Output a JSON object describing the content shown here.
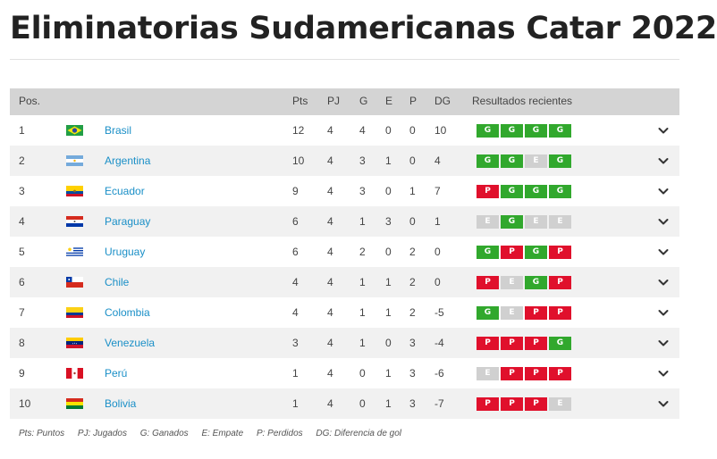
{
  "title": "Eliminatorias Sudamericanas Catar 2022",
  "header": {
    "pos": "Pos.",
    "pts": "Pts",
    "pj": "PJ",
    "g": "G",
    "e": "E",
    "p": "P",
    "dg": "DG",
    "results": "Resultados recientes"
  },
  "rows": [
    {
      "pos": "1",
      "team": "Brasil",
      "flag": "brazil",
      "pts": "12",
      "pj": "4",
      "g": "4",
      "e": "0",
      "p": "0",
      "dg": "10",
      "results": [
        "G",
        "G",
        "G",
        "G"
      ]
    },
    {
      "pos": "2",
      "team": "Argentina",
      "flag": "argentina",
      "pts": "10",
      "pj": "4",
      "g": "3",
      "e": "1",
      "p": "0",
      "dg": "4",
      "results": [
        "G",
        "G",
        "E",
        "G"
      ]
    },
    {
      "pos": "3",
      "team": "Ecuador",
      "flag": "ecuador",
      "pts": "9",
      "pj": "4",
      "g": "3",
      "e": "0",
      "p": "1",
      "dg": "7",
      "results": [
        "P",
        "G",
        "G",
        "G"
      ]
    },
    {
      "pos": "4",
      "team": "Paraguay",
      "flag": "paraguay",
      "pts": "6",
      "pj": "4",
      "g": "1",
      "e": "3",
      "p": "0",
      "dg": "1",
      "results": [
        "E",
        "G",
        "E",
        "E"
      ]
    },
    {
      "pos": "5",
      "team": "Uruguay",
      "flag": "uruguay",
      "pts": "6",
      "pj": "4",
      "g": "2",
      "e": "0",
      "p": "2",
      "dg": "0",
      "results": [
        "G",
        "P",
        "G",
        "P"
      ]
    },
    {
      "pos": "6",
      "team": "Chile",
      "flag": "chile",
      "pts": "4",
      "pj": "4",
      "g": "1",
      "e": "1",
      "p": "2",
      "dg": "0",
      "results": [
        "P",
        "E",
        "G",
        "P"
      ]
    },
    {
      "pos": "7",
      "team": "Colombia",
      "flag": "colombia",
      "pts": "4",
      "pj": "4",
      "g": "1",
      "e": "1",
      "p": "2",
      "dg": "-5",
      "results": [
        "G",
        "E",
        "P",
        "P"
      ]
    },
    {
      "pos": "8",
      "team": "Venezuela",
      "flag": "venezuela",
      "pts": "3",
      "pj": "4",
      "g": "1",
      "e": "0",
      "p": "3",
      "dg": "-4",
      "results": [
        "P",
        "P",
        "P",
        "G"
      ]
    },
    {
      "pos": "9",
      "team": "Perú",
      "flag": "peru",
      "pts": "1",
      "pj": "4",
      "g": "0",
      "e": "1",
      "p": "3",
      "dg": "-6",
      "results": [
        "E",
        "P",
        "P",
        "P"
      ]
    },
    {
      "pos": "10",
      "team": "Bolivia",
      "flag": "bolivia",
      "pts": "1",
      "pj": "4",
      "g": "0",
      "e": "1",
      "p": "3",
      "dg": "-7",
      "results": [
        "P",
        "P",
        "P",
        "E"
      ]
    }
  ],
  "legend": [
    "Pts: Puntos",
    "PJ: Jugados",
    "G: Ganados",
    "E: Empate",
    "P: Perdidos",
    "DG: Diferencia de gol"
  ],
  "colors": {
    "win": "#31a82d",
    "loss": "#e0102c",
    "draw": "#d0d0d0",
    "link": "#1a8fc7",
    "header_bg": "#d4d4d4"
  },
  "icons": {
    "expand": "chevron-down-icon"
  }
}
